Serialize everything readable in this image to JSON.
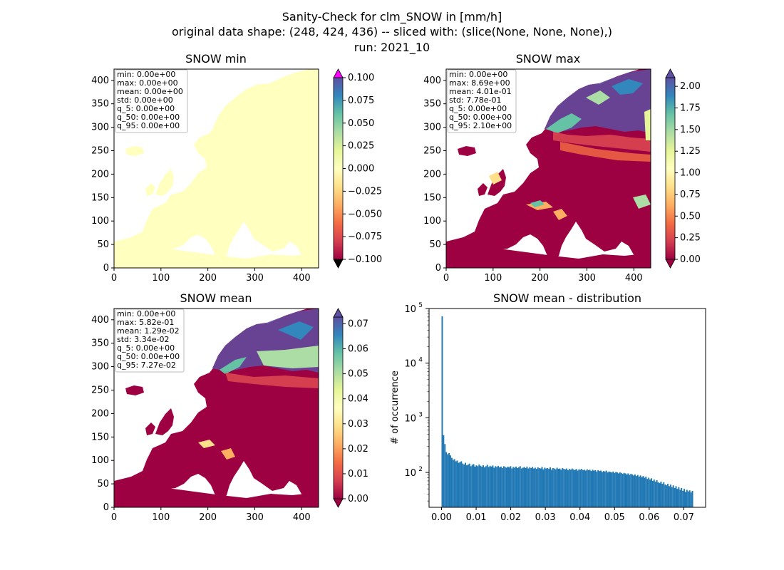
{
  "figure": {
    "suptitle": [
      "Sanity-Check for clm_SNOW in [mm/h]",
      "original data shape: (248, 424, 436) -- sliced with: (slice(None, None, None),)",
      "run: 2021_10"
    ]
  },
  "colors": {
    "cmap": [
      "#9e0142",
      "#d53e4f",
      "#f46d43",
      "#fdae61",
      "#fee08b",
      "#ffffbf",
      "#e6f598",
      "#abdda4",
      "#66c2a5",
      "#3288bd",
      "#5e4fa2"
    ],
    "over_min": "#ff00ff",
    "under_min": "#000000",
    "hist_bar": "#1f77b4"
  },
  "chart_data": [
    {
      "type": "heatmap",
      "title": "SNOW min",
      "xlim": [
        0,
        436
      ],
      "ylim": [
        0,
        424
      ],
      "xticks": [
        "0",
        "100",
        "200",
        "300",
        "400"
      ],
      "yticks": [
        "0",
        "50",
        "100",
        "150",
        "200",
        "250",
        "300",
        "350",
        "400"
      ],
      "colorbar": {
        "vmin": -0.1,
        "vmax": 0.1,
        "ticks": [
          "−0.100",
          "−0.075",
          "−0.050",
          "−0.025",
          "0.000",
          "0.025",
          "0.050",
          "0.075",
          "0.100"
        ],
        "extend": "both"
      },
      "stats": [
        "min: 0.00e+00",
        "max: 0.00e+00",
        "mean: 0.00e+00",
        "std: 0.00e+00",
        "q_5: 0.00e+00",
        "q_50: 0.00e+00",
        "q_95: 0.00e+00"
      ]
    },
    {
      "type": "heatmap",
      "title": "SNOW max",
      "xlim": [
        0,
        436
      ],
      "ylim": [
        0,
        424
      ],
      "xticks": [
        "0",
        "100",
        "200",
        "300",
        "400"
      ],
      "yticks": [
        "0",
        "50",
        "100",
        "150",
        "200",
        "250",
        "300",
        "350",
        "400"
      ],
      "colorbar": {
        "vmin": 0,
        "vmax": 2.1,
        "ticks": [
          "0.00",
          "0.25",
          "0.50",
          "0.75",
          "1.00",
          "1.25",
          "1.50",
          "1.75",
          "2.00"
        ],
        "extend": "both"
      },
      "stats": [
        "min: 0.00e+00",
        "max: 8.69e+00",
        "mean: 4.01e-01",
        "std: 7.78e-01",
        "q_5: 0.00e+00",
        "q_50: 0.00e+00",
        "q_95: 2.10e+00"
      ]
    },
    {
      "type": "heatmap",
      "title": "SNOW mean",
      "xlim": [
        0,
        436
      ],
      "ylim": [
        0,
        424
      ],
      "xticks": [
        "0",
        "100",
        "200",
        "300",
        "400"
      ],
      "yticks": [
        "0",
        "50",
        "100",
        "150",
        "200",
        "250",
        "300",
        "350",
        "400"
      ],
      "colorbar": {
        "vmin": 0,
        "vmax": 0.0727,
        "ticks": [
          "0.00",
          "0.01",
          "0.02",
          "0.03",
          "0.04",
          "0.05",
          "0.06",
          "0.07"
        ],
        "extend": "both"
      },
      "stats": [
        "min: 0.00e+00",
        "max: 5.82e-01",
        "mean: 1.29e-02",
        "std: 3.34e-02",
        "q_5: 0.00e+00",
        "q_50: 0.00e+00",
        "q_95: 7.27e-02"
      ]
    },
    {
      "type": "bar",
      "title": "SNOW mean - distribution",
      "ylabel": "# of occurrence",
      "xlim": [
        -0.0036,
        0.0763
      ],
      "ylim": [
        23,
        100000
      ],
      "yscale": "log",
      "xticks": [
        "0.00",
        "0.01",
        "0.02",
        "0.03",
        "0.04",
        "0.05",
        "0.06",
        "0.07"
      ],
      "yticks": [
        "10^2",
        "10^3",
        "10^4",
        "10^5"
      ],
      "bin_range": [
        0,
        0.0727
      ],
      "values": [
        72000,
        480,
        330,
        235,
        215,
        225,
        205,
        185,
        170,
        175,
        160,
        165,
        150,
        155,
        160,
        145,
        140,
        150,
        135,
        140,
        145,
        130,
        138,
        142,
        128,
        135,
        130,
        140,
        132,
        128,
        136,
        124,
        130,
        138,
        126,
        132,
        128,
        134,
        122,
        130,
        126,
        132,
        124,
        128,
        120,
        130,
        126,
        122,
        128,
        124,
        130,
        118,
        126,
        122,
        128,
        120,
        124,
        130,
        118,
        122,
        126,
        120,
        128,
        118,
        124,
        120,
        126,
        118,
        122,
        116,
        124,
        120,
        118,
        126,
        114,
        122,
        118,
        120,
        116,
        124,
        112,
        120,
        118,
        114,
        122,
        116,
        118,
        112,
        120,
        116,
        114,
        118,
        110,
        116,
        112,
        118,
        114,
        110,
        116,
        108,
        114,
        112,
        116,
        110,
        112,
        108,
        114,
        110,
        112,
        106,
        112,
        108,
        110,
        104,
        110,
        106,
        108,
        102,
        106,
        104,
        108,
        100,
        104,
        102,
        100,
        104,
        98,
        102,
        100,
        96,
        100,
        98,
        94,
        98,
        96,
        92,
        96,
        90,
        94,
        92,
        88,
        92,
        86,
        90,
        84,
        88,
        82,
        86,
        80,
        84,
        76,
        80,
        74,
        78,
        70,
        74,
        68,
        72,
        66,
        64,
        68,
        62,
        66,
        60,
        58,
        62,
        56,
        60,
        54,
        58,
        52,
        56,
        50,
        54,
        48,
        52,
        46,
        50,
        44,
        48,
        45,
        47,
        43,
        46
      ]
    }
  ]
}
